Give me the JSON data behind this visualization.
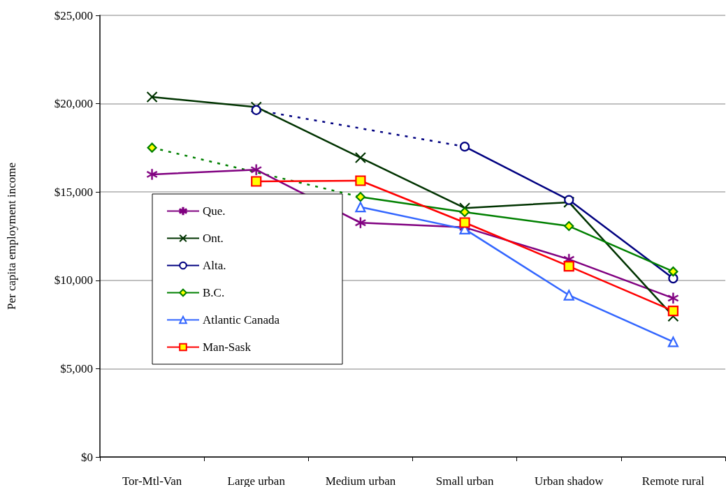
{
  "chart_data": {
    "type": "line",
    "ylabel": "Per capita employment income",
    "categories": [
      "Tor-Mtl-Van",
      "Large urban",
      "Medium urban",
      "Small urban",
      "Urban shadow",
      "Remote rural"
    ],
    "series": [
      {
        "name": "Que.",
        "color": "#800080",
        "marker": "star",
        "values": [
          16000,
          16260,
          13260,
          13000,
          11190,
          8990
        ]
      },
      {
        "name": "Ont.",
        "color": "#003300",
        "marker": "cross",
        "values": [
          20380,
          19810,
          16940,
          14090,
          14420,
          7970
        ]
      },
      {
        "name": "Alta.",
        "color": "#000080",
        "marker": "circle",
        "values": [
          null,
          19640,
          null,
          17570,
          14550,
          10110
        ]
      },
      {
        "name": "B.C.",
        "color": "#008000",
        "marker": "diamond",
        "values": [
          17510,
          null,
          14720,
          13860,
          13070,
          10500
        ]
      },
      {
        "name": "Atlantic Canada",
        "color": "#3366ff",
        "marker": "triangle",
        "values": [
          null,
          null,
          14150,
          12900,
          9160,
          6520
        ]
      },
      {
        "name": "Man-Sask",
        "color": "#ff0000",
        "marker": "square",
        "values": [
          null,
          15600,
          15640,
          13270,
          10800,
          8270
        ]
      }
    ],
    "ylim": [
      0,
      25000
    ],
    "yticks": [
      {
        "value": 0,
        "label": "$0"
      },
      {
        "value": 5000,
        "label": "$5,000"
      },
      {
        "value": 10000,
        "label": "$10,000"
      },
      {
        "value": 15000,
        "label": "$15,000"
      },
      {
        "value": 20000,
        "label": "$20,000"
      },
      {
        "value": 25000,
        "label": "$25,000"
      }
    ],
    "grid": "y",
    "legend": "left",
    "line_style": "solid"
  }
}
